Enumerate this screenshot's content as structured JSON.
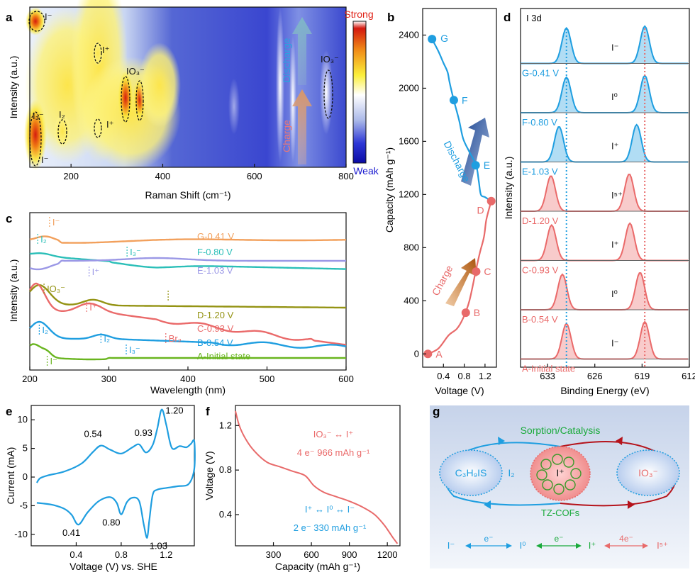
{
  "panel_labels": {
    "a": "a",
    "b": "b",
    "c": "c",
    "d": "d",
    "e": "e",
    "f": "f",
    "g": "g"
  },
  "colors": {
    "blue": "#1f9ee0",
    "red": "#e86a6a",
    "orange": "#f2a05c",
    "teal": "#2bbfb8",
    "lavender": "#9b98e6",
    "olive": "#949313",
    "salmon": "#ea6a6a",
    "green": "#69b51f",
    "darkred": "#b5131b"
  },
  "chart_data": [
    {
      "id": "a",
      "type": "heatmap",
      "xlabel": "Raman Shift (cm⁻¹)",
      "ylabel": "Intensity (a.u.)",
      "xlim": [
        110,
        800
      ],
      "xticks": [
        200,
        400,
        600,
        800
      ],
      "colorbar": {
        "high": "Strong",
        "low": "Weak"
      },
      "arrows": [
        {
          "label": "Discharge"
        },
        {
          "label": "Charge"
        }
      ],
      "annotations": [
        {
          "label": "I⁻",
          "x": 120
        },
        {
          "label": "I⁺",
          "x": 258
        },
        {
          "label": "IO₃⁻",
          "x": 330
        },
        {
          "label": "IO₃⁻",
          "x": 770
        },
        {
          "label": "I₃⁻",
          "x": 115
        },
        {
          "label": "I₂",
          "x": 178
        },
        {
          "label": "I⁺",
          "x": 258
        },
        {
          "label": "I⁻",
          "x": 118
        }
      ]
    },
    {
      "id": "b",
      "type": "line",
      "xlabel": "Voltage (V)",
      "ylabel": "Capacity (mAh g⁻¹)",
      "xlim": [
        0.0,
        1.42
      ],
      "ylim": [
        -100,
        2600
      ],
      "xticks": [
        0.4,
        0.8,
        1.2
      ],
      "yticks": [
        0,
        400,
        800,
        1200,
        1600,
        2000,
        2400
      ],
      "arrows": [
        {
          "label": "Discharge"
        },
        {
          "label": "Charge"
        }
      ],
      "points": [
        {
          "label": "A",
          "v": 0.1,
          "c": 0
        },
        {
          "label": "B",
          "v": 0.83,
          "c": 310
        },
        {
          "label": "C",
          "v": 1.03,
          "c": 620
        },
        {
          "label": "D",
          "v": 1.32,
          "c": 1150
        },
        {
          "label": "E",
          "v": 1.02,
          "c": 1420
        },
        {
          "label": "F",
          "v": 0.6,
          "c": 1910
        },
        {
          "label": "G",
          "v": 0.18,
          "c": 2370
        }
      ],
      "charge_curve": [
        [
          0.1,
          0
        ],
        [
          0.3,
          40
        ],
        [
          0.5,
          140
        ],
        [
          0.66,
          190
        ],
        [
          0.78,
          270
        ],
        [
          0.9,
          400
        ],
        [
          1.02,
          620
        ],
        [
          1.1,
          760
        ],
        [
          1.18,
          880
        ],
        [
          1.22,
          1000
        ],
        [
          1.27,
          1080
        ],
        [
          1.32,
          1150
        ]
      ],
      "discharge_curve": [
        [
          1.32,
          1150
        ],
        [
          1.2,
          1180
        ],
        [
          1.12,
          1200
        ],
        [
          1.08,
          1300
        ],
        [
          1.03,
          1420
        ],
        [
          0.9,
          1520
        ],
        [
          0.78,
          1620
        ],
        [
          0.7,
          1760
        ],
        [
          0.6,
          1910
        ],
        [
          0.52,
          2040
        ],
        [
          0.48,
          2120
        ],
        [
          0.4,
          2190
        ],
        [
          0.3,
          2280
        ],
        [
          0.18,
          2370
        ]
      ]
    },
    {
      "id": "c",
      "type": "line",
      "xlabel": "Wavelength (nm)",
      "ylabel": "Intensity (a.u.)",
      "xlim": [
        200,
        600
      ],
      "xticks": [
        200,
        300,
        400,
        500,
        600
      ],
      "series": [
        {
          "name": "G-0.41 V",
          "color": "#f2a05c"
        },
        {
          "name": "F-0.80 V",
          "color": "#2bbfb8"
        },
        {
          "name": "E-1.03 V",
          "color": "#9b98e6"
        },
        {
          "name": "D-1.20 V",
          "color": "#949313"
        },
        {
          "name": "C-0.93 V",
          "color": "#ea6a6a"
        },
        {
          "name": "B-0.54 V",
          "color": "#1f9ee0"
        },
        {
          "name": "A-Initial state",
          "color": "#69b51f"
        }
      ],
      "annotations": [
        {
          "label": "I⁻",
          "x": 225
        },
        {
          "label": "I₂",
          "x": 210
        },
        {
          "label": "I₃⁻",
          "x": 323
        },
        {
          "label": "I⁺",
          "x": 275
        },
        {
          "label": "IO₃⁻",
          "x": 218
        },
        {
          "label": "I⁺",
          "x": 272
        },
        {
          "label": "Br₂",
          "x": 372
        },
        {
          "label": "I₂",
          "x": 212
        },
        {
          "label": "I₂",
          "x": 290
        },
        {
          "label": "I₃⁻",
          "x": 322
        },
        {
          "label": "I⁻",
          "x": 222
        }
      ]
    },
    {
      "id": "d",
      "type": "line",
      "title": "I 3d",
      "xlabel": "Binding Energy (eV)",
      "ylabel": "Intensity (a.u.)",
      "xlim": [
        637,
        612
      ],
      "xticks": [
        633,
        626,
        619,
        612
      ],
      "reference_lines": [
        630.2,
        618.6
      ],
      "series": [
        {
          "name": "G-0.41 V",
          "color": "#1f9ee0",
          "species": "I⁻",
          "p1": 630.2,
          "p2": 618.6
        },
        {
          "name": "F-0.80 V",
          "color": "#1f9ee0",
          "species": "I⁰",
          "p1": 630.2,
          "p2": 618.6
        },
        {
          "name": "E-1.03 V",
          "color": "#1f9ee0",
          "species": "I⁺",
          "p1": 631.3,
          "p2": 619.8
        },
        {
          "name": "D-1.20 V",
          "color": "#ea6a6a",
          "species": "I⁵⁺",
          "p1": 632.5,
          "p2": 620.9
        },
        {
          "name": "C-0.93 V",
          "color": "#ea6a6a",
          "species": "I⁺",
          "p1": 632.4,
          "p2": 620.8
        },
        {
          "name": "B-0.54 V",
          "color": "#ea6a6a",
          "species": "I⁰",
          "p1": 630.8,
          "p2": 619.3
        },
        {
          "name": "A-Initial state",
          "color": "#ea6a6a",
          "species": "I⁻",
          "p1": 630.2,
          "p2": 618.6
        }
      ]
    },
    {
      "id": "e",
      "type": "line",
      "xlabel": "Voltage (V) vs. SHE",
      "ylabel": "Current (mA)",
      "xlim": [
        0.0,
        1.45
      ],
      "ylim": [
        -12,
        12.5
      ],
      "xticks": [
        0.4,
        0.8,
        1.2
      ],
      "yticks": [
        -10,
        -5,
        0,
        5,
        10
      ],
      "peaks": [
        {
          "label": "0.54",
          "v": 0.6,
          "i": 5.5
        },
        {
          "label": "0.93",
          "v": 0.96,
          "i": 5.7
        },
        {
          "label": "1.20",
          "v": 1.16,
          "i": 11.8
        },
        {
          "label": "0.41",
          "v": 0.42,
          "i": -8.3
        },
        {
          "label": "0.80",
          "v": 0.8,
          "i": -6.5
        },
        {
          "label": "1.03",
          "v": 1.03,
          "i": -10.6
        }
      ],
      "curve": [
        [
          0.05,
          -1.0
        ],
        [
          0.08,
          -0.2
        ],
        [
          0.15,
          0.3
        ],
        [
          0.3,
          1.0
        ],
        [
          0.45,
          2.4
        ],
        [
          0.55,
          4.4
        ],
        [
          0.62,
          5.5
        ],
        [
          0.7,
          4.8
        ],
        [
          0.8,
          4.1
        ],
        [
          0.9,
          5.2
        ],
        [
          0.96,
          5.7
        ],
        [
          1.02,
          4.3
        ],
        [
          1.08,
          5.6
        ],
        [
          1.12,
          8.4
        ],
        [
          1.16,
          11.8
        ],
        [
          1.2,
          9.2
        ],
        [
          1.25,
          5.1
        ],
        [
          1.32,
          5.4
        ],
        [
          1.38,
          5.2
        ],
        [
          1.42,
          5.8
        ],
        [
          1.45,
          6.2
        ],
        [
          1.45,
          1.5
        ],
        [
          1.4,
          -1.2
        ],
        [
          1.3,
          -1.6
        ],
        [
          1.2,
          -1.9
        ],
        [
          1.12,
          -2.2
        ],
        [
          1.08,
          -3.1
        ],
        [
          1.05,
          -7.5
        ],
        [
          1.03,
          -10.6
        ],
        [
          1.0,
          -8.2
        ],
        [
          0.96,
          -4.2
        ],
        [
          0.9,
          -3.6
        ],
        [
          0.85,
          -4.4
        ],
        [
          0.8,
          -6.5
        ],
        [
          0.76,
          -4.5
        ],
        [
          0.7,
          -3.5
        ],
        [
          0.6,
          -4.2
        ],
        [
          0.5,
          -6.2
        ],
        [
          0.42,
          -8.3
        ],
        [
          0.36,
          -6.6
        ],
        [
          0.3,
          -5.6
        ],
        [
          0.2,
          -4.9
        ],
        [
          0.1,
          -4.6
        ],
        [
          0.05,
          -4.5
        ]
      ]
    },
    {
      "id": "f",
      "type": "line",
      "xlabel": "Capacity (mAh g⁻¹)",
      "ylabel": "Voltage (V)",
      "xlim": [
        0,
        1300
      ],
      "ylim": [
        0.12,
        1.38
      ],
      "xticks": [
        300,
        600,
        900,
        1200
      ],
      "yticks": [
        0.4,
        0.8,
        1.2
      ],
      "annotations": [
        "IO₃⁻ ↔ I⁺",
        "4 e⁻  966 mAh g⁻¹",
        "I⁺ ↔ I⁰ ↔ I⁻",
        "2 e⁻  330 mAh g⁻¹"
      ],
      "curve": [
        [
          0,
          1.33
        ],
        [
          30,
          1.2
        ],
        [
          80,
          1.08
        ],
        [
          150,
          0.97
        ],
        [
          250,
          0.87
        ],
        [
          350,
          0.83
        ],
        [
          450,
          0.79
        ],
        [
          550,
          0.75
        ],
        [
          620,
          0.66
        ],
        [
          700,
          0.6
        ],
        [
          800,
          0.56
        ],
        [
          900,
          0.52
        ],
        [
          1000,
          0.47
        ],
        [
          1100,
          0.4
        ],
        [
          1180,
          0.3
        ],
        [
          1240,
          0.2
        ],
        [
          1280,
          0.14
        ]
      ]
    }
  ],
  "diagram_g": {
    "top_label": "Sorption/Catalysis",
    "left_species": "C₃H₉IS",
    "left_mid": "I₂",
    "center": "I⁺",
    "center_sub": "TZ-COFs",
    "right_species": "IO₃⁻",
    "bottom": [
      {
        "text": "I⁻"
      },
      {
        "text": "e⁻"
      },
      {
        "text": "I⁰"
      },
      {
        "text": "e⁻"
      },
      {
        "text": "I⁺"
      },
      {
        "text": "4e⁻"
      },
      {
        "text": "I⁵⁺"
      }
    ]
  }
}
